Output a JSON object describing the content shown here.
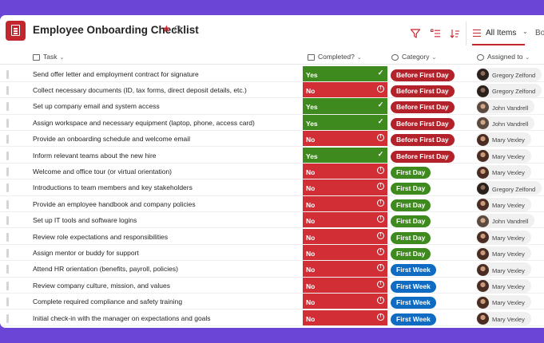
{
  "header": {
    "title": "Employee Onboarding Checklist",
    "favorite_icon": "star-icon",
    "view_label": "All Items",
    "overflow_text": "Bo"
  },
  "columns": {
    "task": "Task",
    "completed": "Completed?",
    "category": "Category",
    "assigned": "Assigned to"
  },
  "colors": {
    "accent": "#c4262e",
    "yes": "#3f8a1e",
    "no": "#d12f35",
    "before_first_day": "#b3222b",
    "first_day": "#3f8a1e",
    "first_week": "#0f6cc2"
  },
  "rows": [
    {
      "task": "Send offer letter and employment contract for signature",
      "completed": "Yes",
      "category": "Before First Day",
      "assigned": "Gregory Zelfond"
    },
    {
      "task": "Collect necessary documents (ID, tax forms, direct deposit details, etc.)",
      "completed": "No",
      "category": "Before First Day",
      "assigned": "Gregory Zelfond"
    },
    {
      "task": "Set up company email and system access",
      "completed": "Yes",
      "category": "Before First Day",
      "assigned": "John Vandrell"
    },
    {
      "task": "Assign workspace and necessary equipment (laptop, phone, access card)",
      "completed": "Yes",
      "category": "Before First Day",
      "assigned": "John Vandrell"
    },
    {
      "task": "Provide an onboarding schedule and welcome email",
      "completed": "No",
      "category": "Before First Day",
      "assigned": "Mary Vexley"
    },
    {
      "task": "Inform relevant teams about the new hire",
      "completed": "Yes",
      "category": "Before First Day",
      "assigned": "Mary Vexley"
    },
    {
      "task": "Welcome and office tour (or virtual orientation)",
      "completed": "No",
      "category": "First Day",
      "assigned": "Mary Vexley"
    },
    {
      "task": "Introductions to team members and key stakeholders",
      "completed": "No",
      "category": "First Day",
      "assigned": "Gregory Zelfond"
    },
    {
      "task": "Provide an employee handbook and company policies",
      "completed": "No",
      "category": "First Day",
      "assigned": "Mary Vexley"
    },
    {
      "task": "Set up IT tools and software logins",
      "completed": "No",
      "category": "First Day",
      "assigned": "John Vandrell"
    },
    {
      "task": "Review role expectations and responsibilities",
      "completed": "No",
      "category": "First Day",
      "assigned": "Mary Vexley"
    },
    {
      "task": "Assign mentor or buddy for support",
      "completed": "No",
      "category": "First Day",
      "assigned": "Mary Vexley"
    },
    {
      "task": "Attend HR orientation (benefits, payroll, policies)",
      "completed": "No",
      "category": "First Week",
      "assigned": "Mary Vexley"
    },
    {
      "task": "Review company culture, mission, and values",
      "completed": "No",
      "category": "First Week",
      "assigned": "Mary Vexley"
    },
    {
      "task": "Complete required compliance and safety training",
      "completed": "No",
      "category": "First Week",
      "assigned": "Mary Vexley"
    },
    {
      "task": "Initial check-in with the manager on expectations and goals",
      "completed": "No",
      "category": "First Week",
      "assigned": "Mary Vexley"
    }
  ]
}
